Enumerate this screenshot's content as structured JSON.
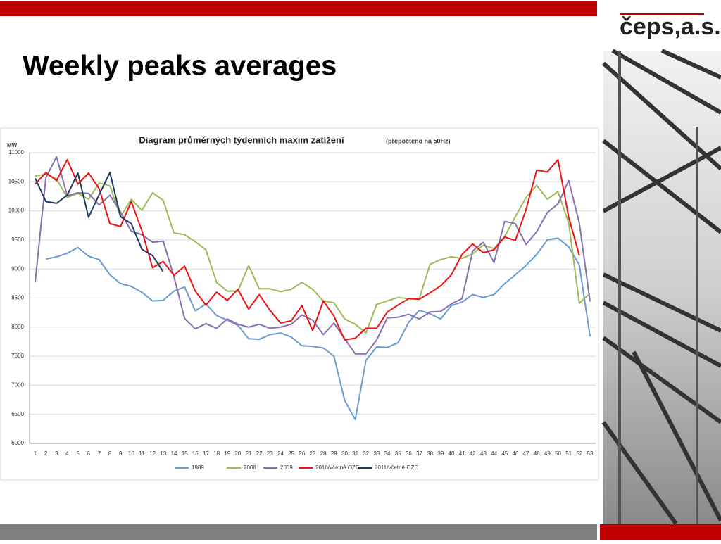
{
  "title": "Weekly peaks averages",
  "logo": "čeps,a.s.",
  "chart_data": {
    "type": "line",
    "title": "Diagram průměrných týdenních maxim zatížení",
    "subtitle": "(přepočteno na 50Hz)",
    "y_label": "MW",
    "categories": [
      "1",
      "2",
      "3",
      "4",
      "5",
      "6",
      "7",
      "8",
      "9",
      "10",
      "11",
      "12",
      "13",
      "14",
      "15",
      "16",
      "17",
      "18",
      "19",
      "20",
      "21",
      "22",
      "23",
      "24",
      "25",
      "26",
      "27",
      "28",
      "29",
      "30",
      "31",
      "32",
      "33",
      "34",
      "35",
      "36",
      "37",
      "38",
      "39",
      "40",
      "41",
      "42",
      "43",
      "44",
      "45",
      "46",
      "47",
      "48",
      "49",
      "50",
      "51",
      "52",
      "53"
    ],
    "ylim": [
      6000,
      11000
    ],
    "yticks": [
      6000,
      6500,
      7000,
      7500,
      8000,
      8500,
      9000,
      9500,
      10000,
      10500,
      11000
    ],
    "grid": true,
    "legend": "bottom",
    "series": [
      {
        "name": "1989",
        "color": "#6a9bcf",
        "values": [
          null,
          9170,
          9210,
          9270,
          9370,
          9220,
          9160,
          8900,
          8750,
          8700,
          8600,
          8450,
          8460,
          8620,
          8690,
          8280,
          8400,
          8200,
          8120,
          8030,
          7800,
          7790,
          7870,
          7900,
          7830,
          7680,
          7670,
          7640,
          7500,
          6740,
          6410,
          7430,
          7660,
          7650,
          7730,
          8080,
          8290,
          8230,
          8140,
          8370,
          8430,
          8560,
          8510,
          8560,
          8750,
          8900,
          9060,
          9250,
          9500,
          9530,
          9380,
          9070,
          7840
        ]
      },
      {
        "name": "2008",
        "color": "#9bbb59",
        "values": [
          10600,
          10630,
          10550,
          10230,
          10300,
          10200,
          10480,
          10430,
          9900,
          10200,
          10010,
          10310,
          10180,
          9620,
          9590,
          9470,
          9330,
          8770,
          8620,
          8620,
          9060,
          8660,
          8660,
          8610,
          8650,
          8770,
          8650,
          8450,
          8420,
          8140,
          8050,
          7900,
          8390,
          8450,
          8510,
          8490,
          8490,
          9080,
          9160,
          9210,
          9180,
          9260,
          9410,
          9350,
          9560,
          9900,
          10230,
          10440,
          10200,
          10330,
          9790,
          8410,
          8580
        ]
      },
      {
        "name": "2009",
        "color": "#8a6fb0",
        "values": [
          8780,
          10570,
          10930,
          10260,
          10310,
          10300,
          10100,
          10270,
          9980,
          9650,
          9590,
          9460,
          9480,
          8870,
          8150,
          7970,
          8060,
          7980,
          8140,
          8050,
          8000,
          8050,
          7980,
          8000,
          8050,
          8210,
          8120,
          7870,
          8070,
          7800,
          7540,
          7540,
          7780,
          8160,
          8170,
          8220,
          8140,
          8260,
          8270,
          8400,
          8490,
          9310,
          9460,
          9110,
          9820,
          9780,
          9420,
          9640,
          9970,
          10120,
          10520,
          9790,
          8440
        ]
      },
      {
        "name": "2010/včetně OZE",
        "color": "#ee1111",
        "values": [
          10460,
          10660,
          10520,
          10880,
          10460,
          10650,
          10380,
          9780,
          9730,
          10160,
          9660,
          9020,
          9130,
          8890,
          9050,
          8620,
          8380,
          8600,
          8460,
          8650,
          8310,
          8560,
          8290,
          8070,
          8110,
          8370,
          7940,
          8450,
          8190,
          7780,
          7810,
          7980,
          7980,
          8260,
          8380,
          8490,
          8480,
          8590,
          8710,
          8900,
          9250,
          9430,
          9280,
          9330,
          9550,
          9490,
          10020,
          10700,
          10670,
          10880,
          9890,
          9230,
          null
        ]
      },
      {
        "name": "2011/včetně OZE",
        "color": "#1f3a5f",
        "values": [
          10560,
          10160,
          10130,
          10270,
          10650,
          9890,
          10280,
          10660,
          9900,
          9780,
          9340,
          9230,
          8950,
          null,
          null,
          null,
          null,
          null,
          null,
          null,
          null,
          null,
          null,
          null,
          null,
          null,
          null,
          null,
          null,
          null,
          null,
          null,
          null,
          null,
          null,
          null,
          null,
          null,
          null,
          null,
          null,
          null,
          null,
          null,
          null,
          null,
          null,
          null,
          null,
          null,
          null,
          null,
          null
        ]
      }
    ]
  }
}
